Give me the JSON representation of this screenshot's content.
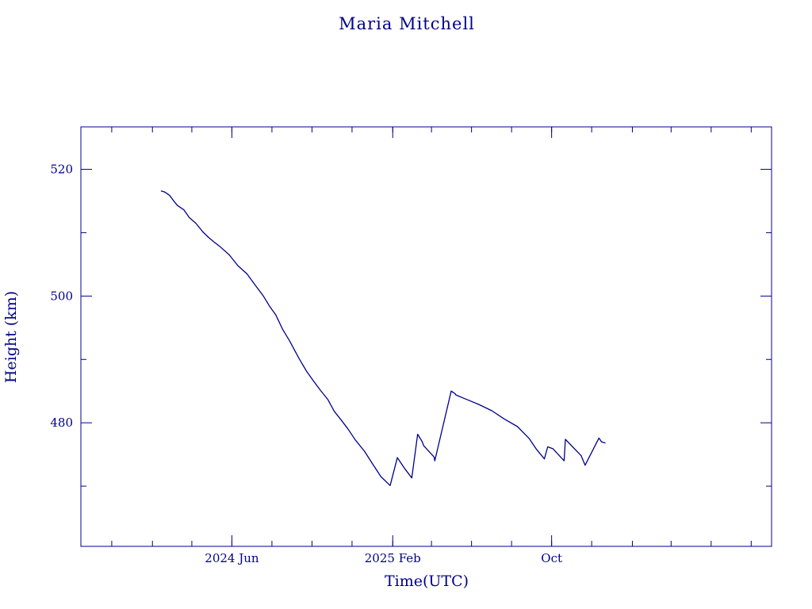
{
  "chart_data": {
    "type": "line",
    "title": "Maria Mitchell",
    "xlabel": "Time(UTC)",
    "ylabel": "Height (km)",
    "x_tick_labels": [
      "2024 Jun",
      "2025 Feb",
      "Oct"
    ],
    "x_ticks": [
      "2024-06-01",
      "2025-02-01",
      "2025-10-01"
    ],
    "xlim": [
      "2023-10-15",
      "2026-09-01"
    ],
    "y_tick_labels": [
      "480",
      "500",
      "520"
    ],
    "y_ticks": [
      480,
      500,
      520
    ],
    "ylim": [
      460.5,
      526.7
    ],
    "grid": false,
    "legend": "none",
    "color": "#00008b",
    "series": [
      {
        "x": [
          "2024-02-14",
          "2024-02-20",
          "2024-02-27",
          "2024-03-06",
          "2024-03-10",
          "2024-03-20",
          "2024-03-28",
          "2024-04-07",
          "2024-04-18",
          "2024-04-26",
          "2024-05-04",
          "2024-05-15",
          "2024-05-28",
          "2024-06-10",
          "2024-06-24",
          "2024-07-06",
          "2024-07-19",
          "2024-07-29",
          "2024-08-07",
          "2024-08-17",
          "2024-08-28",
          "2024-09-11",
          "2024-09-23",
          "2024-10-04",
          "2024-10-14",
          "2024-10-25",
          "2024-11-04",
          "2024-11-14",
          "2024-11-25",
          "2024-12-06",
          "2024-12-20",
          "2025-01-02",
          "2025-01-14",
          "2025-01-28",
          "2025-02-08",
          "2025-02-19",
          "2025-03-02",
          "2025-03-11",
          "2025-03-18",
          "2025-03-20",
          "2025-04-05",
          "2025-04-06",
          "2025-05-01",
          "2025-05-07",
          "2025-05-08",
          "2025-05-22",
          "2025-06-12",
          "2025-07-02",
          "2025-07-21",
          "2025-08-10",
          "2025-08-28",
          "2025-09-08",
          "2025-09-20",
          "2025-09-25",
          "2025-10-03",
          "2025-10-20",
          "2025-10-22",
          "2025-11-15",
          "2025-11-21",
          "2025-12-12",
          "2025-12-16",
          "2025-12-22"
        ],
        "y": [
          516.6,
          516.4,
          515.9,
          514.8,
          514.3,
          513.6,
          512.4,
          511.5,
          510.1,
          509.3,
          508.6,
          507.7,
          506.5,
          504.8,
          503.5,
          501.8,
          500.0,
          498.3,
          497.0,
          494.8,
          492.9,
          490.2,
          488.1,
          486.5,
          485.1,
          483.7,
          481.8,
          480.5,
          479.0,
          477.3,
          475.5,
          473.4,
          471.5,
          470.1,
          474.5,
          472.8,
          471.3,
          478.2,
          477.0,
          476.4,
          474.6,
          474.0,
          485.0,
          484.6,
          484.4,
          483.8,
          482.9,
          481.9,
          480.6,
          479.4,
          477.5,
          475.8,
          474.3,
          476.2,
          475.9,
          474.0,
          477.4,
          474.8,
          473.3,
          477.6,
          477.0,
          476.8
        ]
      }
    ]
  }
}
